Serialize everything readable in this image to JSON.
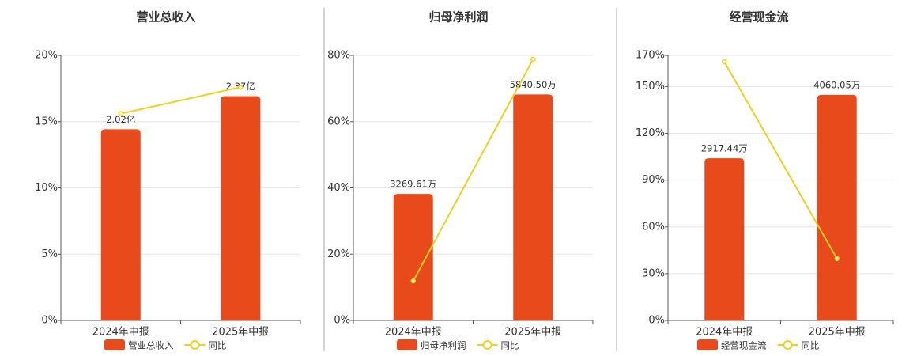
{
  "chart_data": [
    {
      "type": "bar",
      "title": "营业总收入",
      "categories": [
        "2024年中报",
        "2025年中报"
      ],
      "series": [
        {
          "name": "营业总收入",
          "color": "#e84a1b",
          "axis": "y2",
          "values": [
            2.02,
            2.37
          ],
          "value_labels": [
            "2.02亿",
            "2.37亿"
          ]
        },
        {
          "name": "同比",
          "color": "#f2cf1d",
          "type": "line",
          "values": [
            15.6,
            17.6
          ]
        }
      ],
      "ylim": [
        0,
        20
      ],
      "yticks": [
        {
          "value": 0,
          "label": "0%"
        },
        {
          "value": 5,
          "label": "5%"
        },
        {
          "value": 10,
          "label": "10%"
        },
        {
          "value": 15,
          "label": "15%"
        },
        {
          "value": 20,
          "label": "20%"
        }
      ],
      "y2lim": [
        0,
        2.8
      ],
      "grid": true
    },
    {
      "type": "bar",
      "title": "归母净利润",
      "categories": [
        "2024年中报",
        "2025年中报"
      ],
      "series": [
        {
          "name": "归母净利润",
          "color": "#e84a1b",
          "axis": "y2",
          "values": [
            3269.61,
            5840.5
          ],
          "value_labels": [
            "3269.61万",
            "5840.50万"
          ]
        },
        {
          "name": "同比",
          "color": "#f2cf1d",
          "type": "line",
          "values": [
            11.9,
            78.8
          ]
        }
      ],
      "ylim": [
        0,
        80
      ],
      "yticks": [
        {
          "value": 0,
          "label": "0%"
        },
        {
          "value": 20,
          "label": "20%"
        },
        {
          "value": 40,
          "label": "40%"
        },
        {
          "value": 60,
          "label": "60%"
        },
        {
          "value": 80,
          "label": "80%"
        }
      ],
      "y2lim": [
        0,
        6850
      ],
      "grid": true
    },
    {
      "type": "bar",
      "title": "经营现金流",
      "categories": [
        "2024年中报",
        "2025年中报"
      ],
      "series": [
        {
          "name": "经营现金流",
          "color": "#e84a1b",
          "axis": "y2",
          "values": [
            2917.44,
            4060.05
          ],
          "value_labels": [
            "2917.44万",
            "4060.05万"
          ]
        },
        {
          "name": "同比",
          "color": "#f2cf1d",
          "type": "line",
          "values": [
            165.9,
            39.6
          ]
        }
      ],
      "ylim": [
        0,
        170
      ],
      "yticks": [
        {
          "value": 0,
          "label": "0%"
        },
        {
          "value": 30,
          "label": "30%"
        },
        {
          "value": 60,
          "label": "60%"
        },
        {
          "value": 90,
          "label": "90%"
        },
        {
          "value": 120,
          "label": "120%"
        },
        {
          "value": 150,
          "label": "150%"
        },
        {
          "value": 170,
          "label": "170%"
        }
      ],
      "y2lim": [
        0,
        4770
      ],
      "grid": true
    }
  ]
}
